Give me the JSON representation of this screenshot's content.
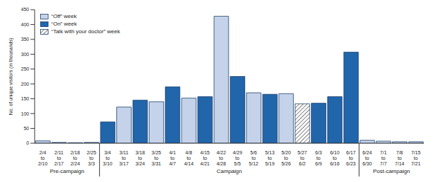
{
  "chart_data": {
    "type": "bar",
    "y_label": "No. of unique visitors (in thousands)",
    "categories": [
      "2/4 to 2/10",
      "2/11 to 2/17",
      "2/18 to 2/24",
      "2/25 to 3/3",
      "3/4 to 3/10",
      "3/11 to 3/17",
      "3/18 to 3/24",
      "3/25 to 3/31",
      "4/1 to 4/7",
      "4/8 to 4/14",
      "4/15 to 4/21",
      "4/22 to 4/28",
      "4/29 to 5/5",
      "5/6 to 5/12",
      "5/13 to 5/19",
      "5/20 to 5/26",
      "5/27 to 6/2",
      "6/3 to 6/9",
      "6/10 to 6/16",
      "6/17 to 6/23",
      "6/24 to 6/30",
      "7/1 to 7/7",
      "7/8 to 7/14",
      "7/15 to 7/21"
    ],
    "series": [
      {
        "name": "“Off” week",
        "color": "#c5d3ea",
        "values": [
          8,
          3,
          2,
          3,
          null,
          122,
          null,
          140,
          null,
          152,
          null,
          428,
          null,
          170,
          null,
          167,
          null,
          null,
          null,
          null,
          10,
          7,
          5,
          5
        ]
      },
      {
        "name": "“On” week",
        "color": "#2165ab",
        "values": [
          null,
          null,
          null,
          null,
          72,
          null,
          145,
          null,
          190,
          null,
          157,
          null,
          225,
          null,
          165,
          null,
          null,
          135,
          157,
          307,
          null,
          null,
          null,
          null
        ]
      },
      {
        "name": "“Talk with your doctor” week",
        "color": "#ffffff",
        "marker": "hatch",
        "values": [
          null,
          null,
          null,
          null,
          null,
          null,
          null,
          null,
          null,
          null,
          null,
          null,
          null,
          null,
          null,
          null,
          133,
          null,
          null,
          null,
          null,
          null,
          null,
          null
        ]
      }
    ],
    "ylim": [
      0,
      450
    ],
    "yticks": [
      0,
      50,
      100,
      150,
      200,
      250,
      300,
      350,
      400,
      450
    ],
    "legend": "top-left",
    "groups": [
      {
        "label": "Pre-campaign",
        "from": "2/4 to 2/10",
        "to": "2/25 to 3/3"
      },
      {
        "label": "Campaign",
        "from": "3/4 to 3/10",
        "to": "6/17 to 6/23"
      },
      {
        "label": "Post-campaign",
        "from": "6/24 to 6/30",
        "to": "7/15 to 7/21"
      }
    ]
  }
}
